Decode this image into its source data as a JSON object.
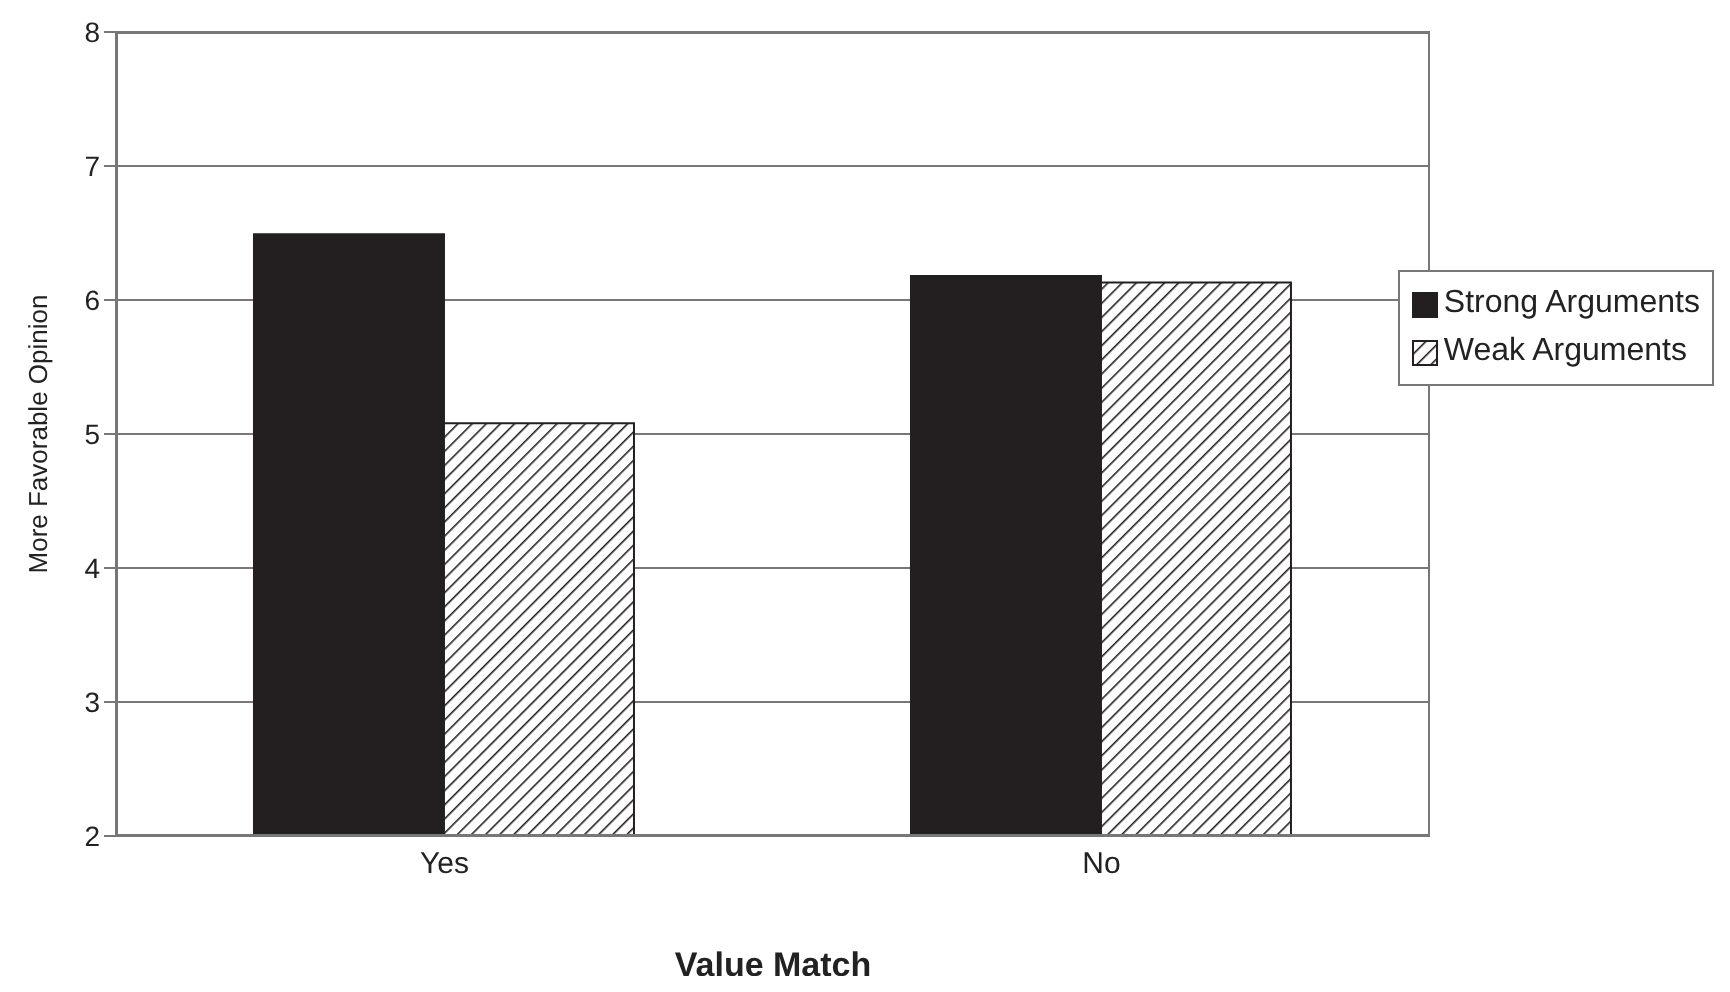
{
  "chart_data": {
    "type": "bar",
    "xlabel": "Value Match",
    "ylabel": "More Favorable Opinion",
    "categories": [
      "Yes",
      "No"
    ],
    "series": [
      {
        "name": "Strong Arguments",
        "color": "#231f20",
        "values": [
          6.49,
          6.18
        ]
      },
      {
        "name": "Weak Arguments",
        "color": "#231f20",
        "values": [
          5.08,
          6.13
        ]
      }
    ],
    "ylim": [
      2,
      8
    ],
    "yticks": [
      2,
      3,
      4,
      5,
      6,
      7,
      8
    ],
    "grid": "y",
    "legend": "right"
  }
}
